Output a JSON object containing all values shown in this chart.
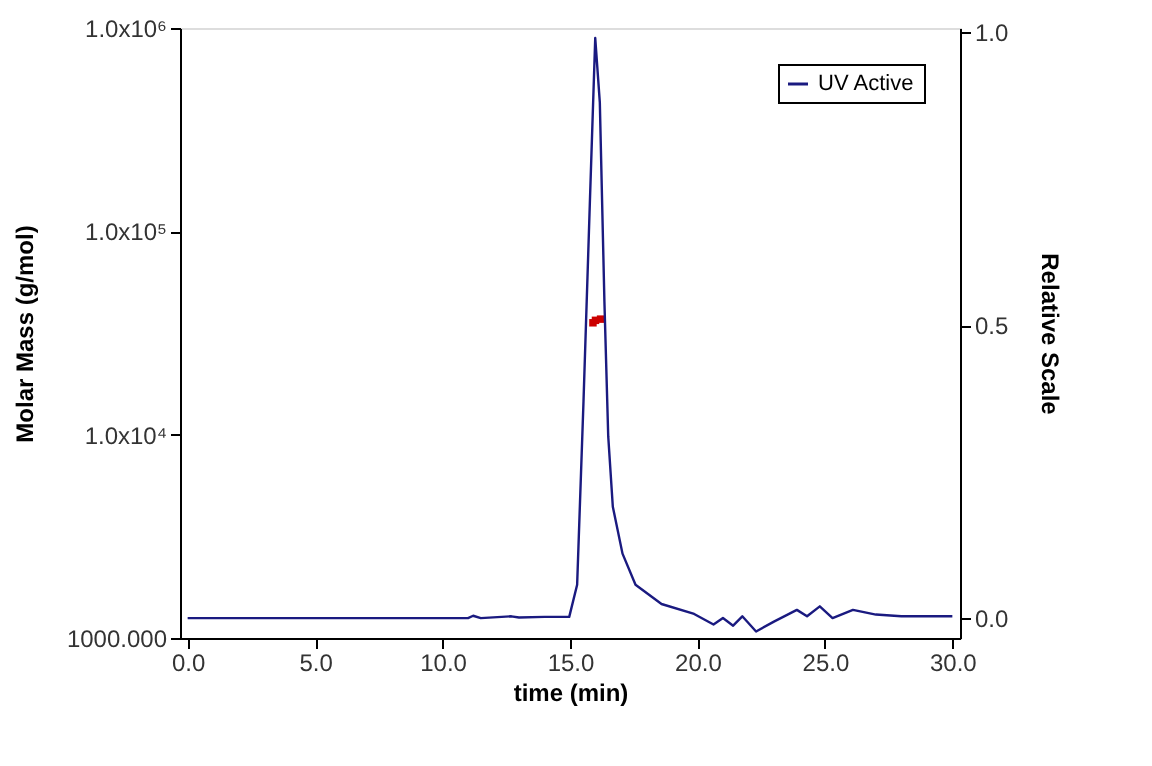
{
  "chart_data": {
    "type": "line",
    "xlabel": "time (min)",
    "ylabel": "Molar Mass (g/mol)",
    "y2label": "Relative Scale",
    "log": "y",
    "legend": "top right",
    "line_style": "solid",
    "xlim": [
      -0.3,
      30.3
    ],
    "xticks": [
      {
        "value": 0,
        "label": "0.0"
      },
      {
        "value": 5,
        "label": "5.0"
      },
      {
        "value": 10,
        "label": "10.0"
      },
      {
        "value": 15,
        "label": "15.0"
      },
      {
        "value": 20,
        "label": "20.0"
      },
      {
        "value": 25,
        "label": "25.0"
      },
      {
        "value": 30,
        "label": "30.0"
      }
    ],
    "ylim": [
      1000,
      1000000
    ],
    "yticks": [
      {
        "value": 1000,
        "label": "1000.000"
      },
      {
        "value": 10000,
        "label": "1.0x10⁴"
      },
      {
        "value": 100000,
        "label": "1.0x10⁵"
      },
      {
        "value": 1000000,
        "label": "1.0x10⁶"
      }
    ],
    "y2lim": [
      -0.034,
      1.007
    ],
    "y2ticks": [
      {
        "value": 0,
        "label": "0.0"
      },
      {
        "value": 0.5,
        "label": "0.5"
      },
      {
        "value": 1,
        "label": "1.0"
      }
    ],
    "series": [
      {
        "name": "UV Active",
        "axis": "y2",
        "color": "#1a1a80",
        "x": [
          0,
          11.0,
          11.2,
          11.5,
          12.7,
          13.0,
          14.0,
          14.97,
          15.28,
          15.53,
          15.78,
          15.99,
          16.17,
          16.35,
          16.5,
          16.68,
          17.06,
          17.57,
          18.59,
          19.87,
          20.63,
          21.0,
          21.4,
          21.76,
          22.3,
          23.0,
          23.9,
          24.3,
          24.8,
          25.3,
          26.1,
          27.0,
          28.0,
          30.0
        ],
        "values": [
          0,
          0,
          0.004,
          0,
          0.003,
          0.001,
          0.002,
          0.002,
          0.057,
          0.37,
          0.71,
          0.99,
          0.88,
          0.54,
          0.31,
          0.19,
          0.11,
          0.057,
          0.024,
          0.007,
          -0.011,
          0,
          -0.013,
          0.003,
          -0.023,
          -0.006,
          0.014,
          0.003,
          0.02,
          0,
          0.014,
          0.006,
          0.003,
          0.003
        ]
      },
      {
        "type": "scatter",
        "axis": "y",
        "color": "#cc0000",
        "marker": "square",
        "x": [
          15.9,
          16.0,
          16.2
        ],
        "values": [
          35500,
          36500,
          37000
        ]
      }
    ]
  }
}
